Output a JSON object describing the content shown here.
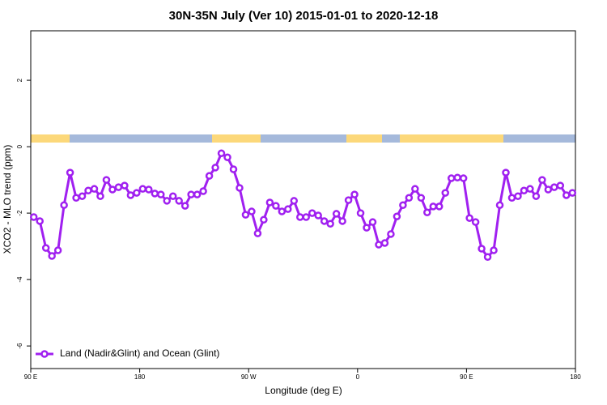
{
  "chart_data": {
    "type": "line",
    "title": "30N-35N July (Ver 10)   2015-01-01 to 2020-12-18",
    "xlabel": "Longitude (deg E)",
    "ylabel": "XCO2 - MLO trend (ppm)",
    "xlim": [
      90,
      540
    ],
    "ylim": [
      -6.68,
      3.49
    ],
    "xticks": [
      {
        "value": 90,
        "label": "90 E"
      },
      180,
      {
        "value": 270,
        "label": "90 W"
      },
      {
        "value": 360,
        "label": "0"
      },
      {
        "value": 450,
        "label": "90 E"
      },
      {
        "value": 540,
        "label": "180"
      }
    ],
    "yticks": [
      -6,
      -4,
      -2,
      0,
      2
    ],
    "legend": "bottom-left",
    "x": [
      92.5,
      97.5,
      102.5,
      107.5,
      112.5,
      117.5,
      122.5,
      127.5,
      132.5,
      137.5,
      142.5,
      147.5,
      152.5,
      157.5,
      162.5,
      167.5,
      172.5,
      177.5,
      182.5,
      187.5,
      192.5,
      197.5,
      202.5,
      207.5,
      212.5,
      217.5,
      222.5,
      227.5,
      232.5,
      237.5,
      242.5,
      247.5,
      252.5,
      257.5,
      262.5,
      267.5,
      272.5,
      277.5,
      282.5,
      287.5,
      292.5,
      297.5,
      302.5,
      307.5,
      312.5,
      317.5,
      322.5,
      327.5,
      332.5,
      337.5,
      342.5,
      347.5,
      352.5,
      357.5,
      362.5,
      367.5,
      372.5,
      377.5,
      382.5,
      387.5,
      392.5,
      397.5,
      402.5,
      407.5,
      412.5,
      417.5,
      422.5,
      427.5,
      432.5,
      437.5,
      442.5,
      447.5,
      452.5,
      457.5,
      462.5,
      467.5,
      472.5,
      477.5,
      482.5,
      487.5,
      492.5,
      497.5,
      502.5,
      507.5,
      512.5,
      517.5,
      522.5,
      527.5,
      532.5,
      537.5
    ],
    "series": [
      {
        "name": "Land (Nadir&Glint) and Ocean (Glint)",
        "color": "#a020f0",
        "values": [
          -2.12,
          -2.24,
          -3.05,
          -3.29,
          -3.12,
          -1.76,
          -0.78,
          -1.54,
          -1.49,
          -1.32,
          -1.27,
          -1.49,
          -1.0,
          -1.29,
          -1.22,
          -1.17,
          -1.46,
          -1.39,
          -1.27,
          -1.29,
          -1.41,
          -1.44,
          -1.63,
          -1.49,
          -1.63,
          -1.78,
          -1.44,
          -1.44,
          -1.34,
          -0.88,
          -0.63,
          -0.2,
          -0.32,
          -0.68,
          -1.24,
          -2.05,
          -1.95,
          -2.61,
          -2.2,
          -1.68,
          -1.78,
          -1.95,
          -1.88,
          -1.63,
          -2.12,
          -2.12,
          -2.0,
          -2.07,
          -2.24,
          -2.32,
          -2.02,
          -2.24,
          -1.61,
          -1.44,
          -2.0,
          -2.44,
          -2.27,
          -2.95,
          -2.9,
          -2.63,
          -2.1,
          -1.76,
          -1.54,
          -1.27,
          -1.54,
          -1.98,
          -1.8,
          -1.8,
          -1.39,
          -0.95,
          -0.93,
          -0.95,
          -2.15,
          -2.27,
          -3.07,
          -3.32,
          -3.12,
          -1.76,
          -0.78,
          -1.54,
          -1.49,
          -1.32,
          -1.27,
          -1.49,
          -1.0,
          -1.29,
          -1.22,
          -1.17,
          -1.46,
          -1.39
        ]
      }
    ]
  }
}
